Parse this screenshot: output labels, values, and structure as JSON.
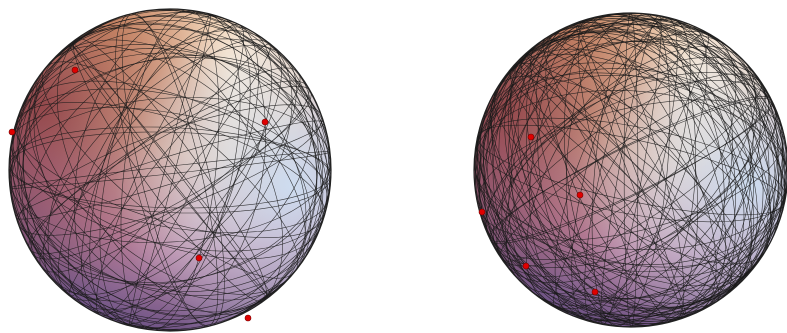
{
  "figure": {
    "panels": [
      {
        "id": "left",
        "curves": 52,
        "seed": 11,
        "points": 5
      },
      {
        "id": "right",
        "curves": 78,
        "seed": 29,
        "points": 5
      }
    ],
    "colors": {
      "background": "#ffffff",
      "sphere_light": "#fbeede",
      "sphere_orange": "#e2a46c",
      "sphere_red": "#8a3a3e",
      "sphere_blue": "#cddff3",
      "sphere_purple": "#4c3c78",
      "curve_stroke": "#1a1a1a",
      "point_fill": "#e00000"
    }
  }
}
